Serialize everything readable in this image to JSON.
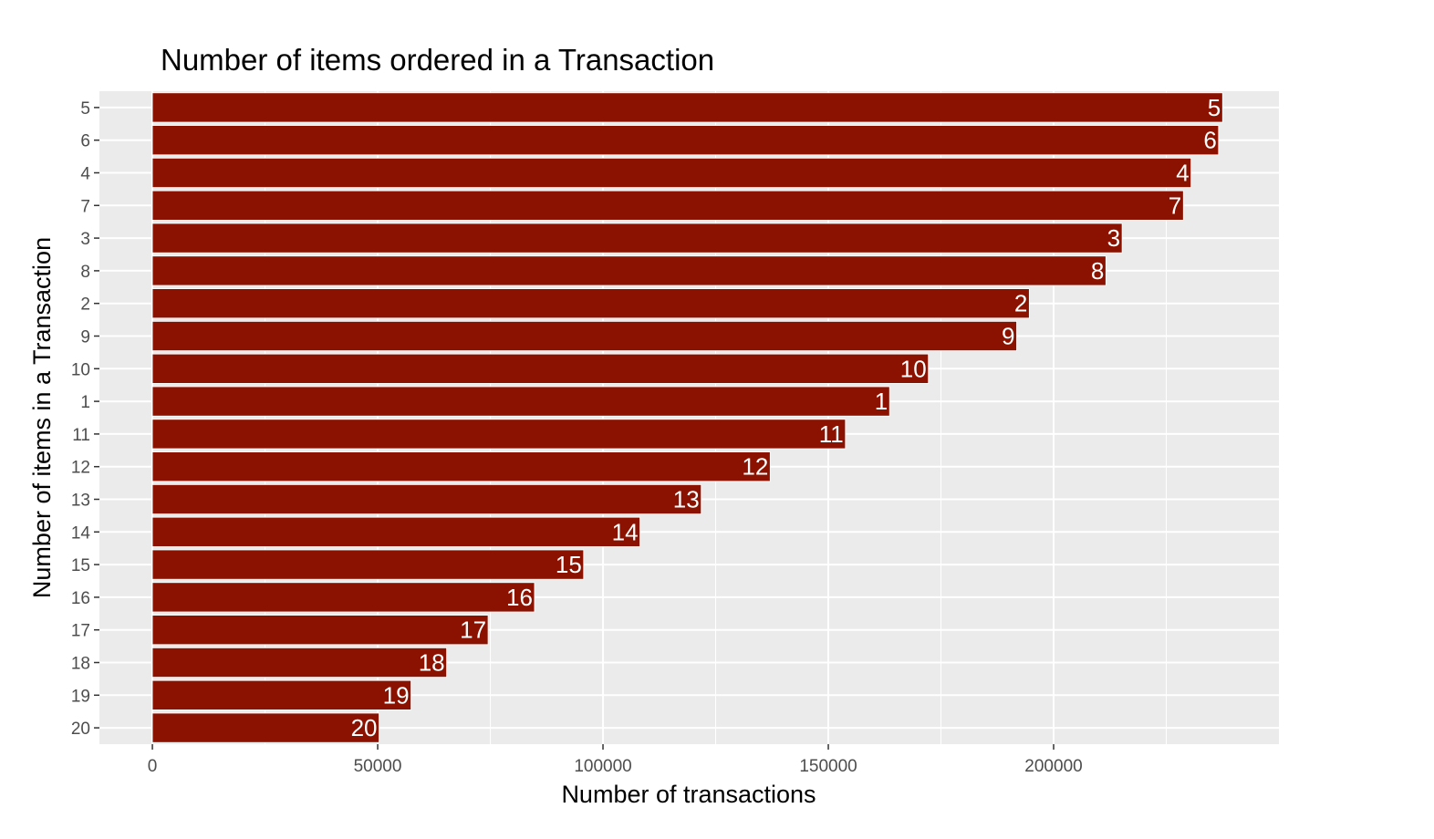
{
  "chart_data": {
    "type": "bar",
    "orientation": "horizontal",
    "title": "Number of items ordered in a Transaction",
    "xlabel": "Number of transactions",
    "ylabel": "Number of items in a Transaction",
    "categories": [
      "5",
      "6",
      "4",
      "7",
      "3",
      "8",
      "2",
      "9",
      "10",
      "1",
      "11",
      "12",
      "13",
      "14",
      "15",
      "16",
      "17",
      "18",
      "19",
      "20"
    ],
    "values": [
      237500,
      236600,
      230500,
      228800,
      215200,
      211600,
      194600,
      191800,
      172200,
      163600,
      153800,
      137100,
      121800,
      108200,
      95700,
      84800,
      74500,
      65300,
      57400,
      50300
    ],
    "data_labels": [
      "5",
      "6",
      "4",
      "7",
      "3",
      "8",
      "2",
      "9",
      "10",
      "1",
      "11",
      "12",
      "13",
      "14",
      "15",
      "16",
      "17",
      "18",
      "19",
      "20"
    ],
    "xlim": [
      -11750,
      250000
    ],
    "xticks": [
      0,
      50000,
      100000,
      150000,
      200000
    ],
    "xtick_labels": [
      "0",
      "50000",
      "100000",
      "150000",
      "200000"
    ],
    "grid": true,
    "bar_color": "#8b1200",
    "panel_color": "#ebebeb",
    "legend": "none"
  }
}
